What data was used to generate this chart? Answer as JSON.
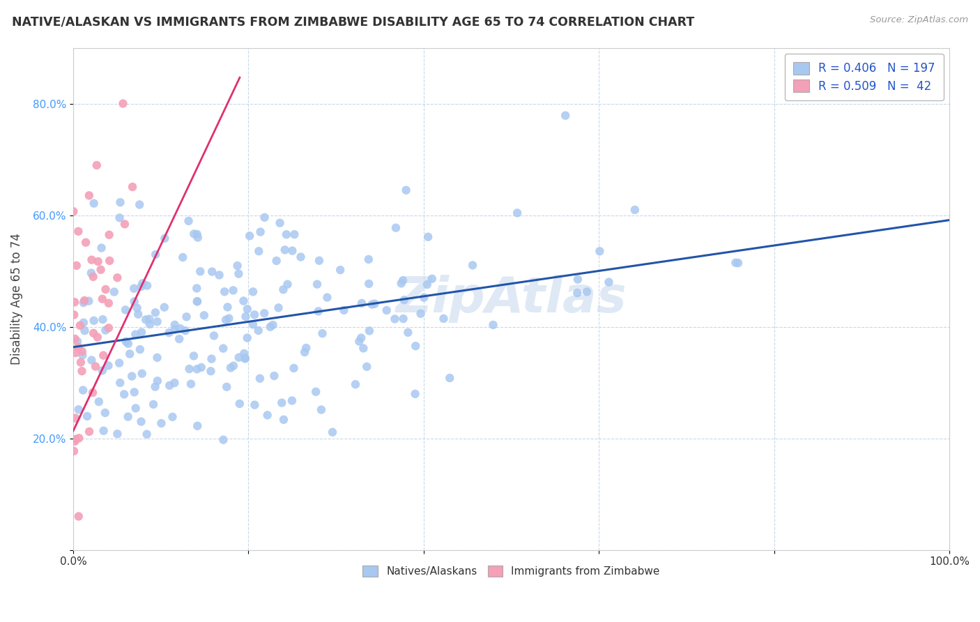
{
  "title": "NATIVE/ALASKAN VS IMMIGRANTS FROM ZIMBABWE DISABILITY AGE 65 TO 74 CORRELATION CHART",
  "source": "Source: ZipAtlas.com",
  "ylabel": "Disability Age 65 to 74",
  "xlim": [
    0.0,
    1.0
  ],
  "ylim": [
    0.0,
    0.9
  ],
  "xtick_positions": [
    0.0,
    0.2,
    0.4,
    0.6,
    0.8,
    1.0
  ],
  "xticklabels": [
    "0.0%",
    "",
    "",
    "",
    "",
    "100.0%"
  ],
  "ytick_positions": [
    0.0,
    0.2,
    0.4,
    0.6,
    0.8
  ],
  "yticklabels": [
    "",
    "20.0%",
    "40.0%",
    "60.0%",
    "80.0%"
  ],
  "native_R": 0.406,
  "native_N": 197,
  "immigrant_R": 0.509,
  "immigrant_N": 42,
  "native_color": "#a8c8f0",
  "immigrant_color": "#f4a0b8",
  "native_line_color": "#2255aa",
  "immigrant_line_color": "#e03070",
  "background_color": "#ffffff",
  "grid_color": "#c8d8ec",
  "watermark": "ZipAtlas",
  "legend_label_native": "Natives/Alaskans",
  "legend_label_immigrant": "Immigrants from Zimbabwe",
  "title_color": "#333333",
  "source_color": "#999999",
  "ylabel_color": "#444444",
  "yticklabel_color": "#4499ff",
  "xticklabel_color": "#333333"
}
